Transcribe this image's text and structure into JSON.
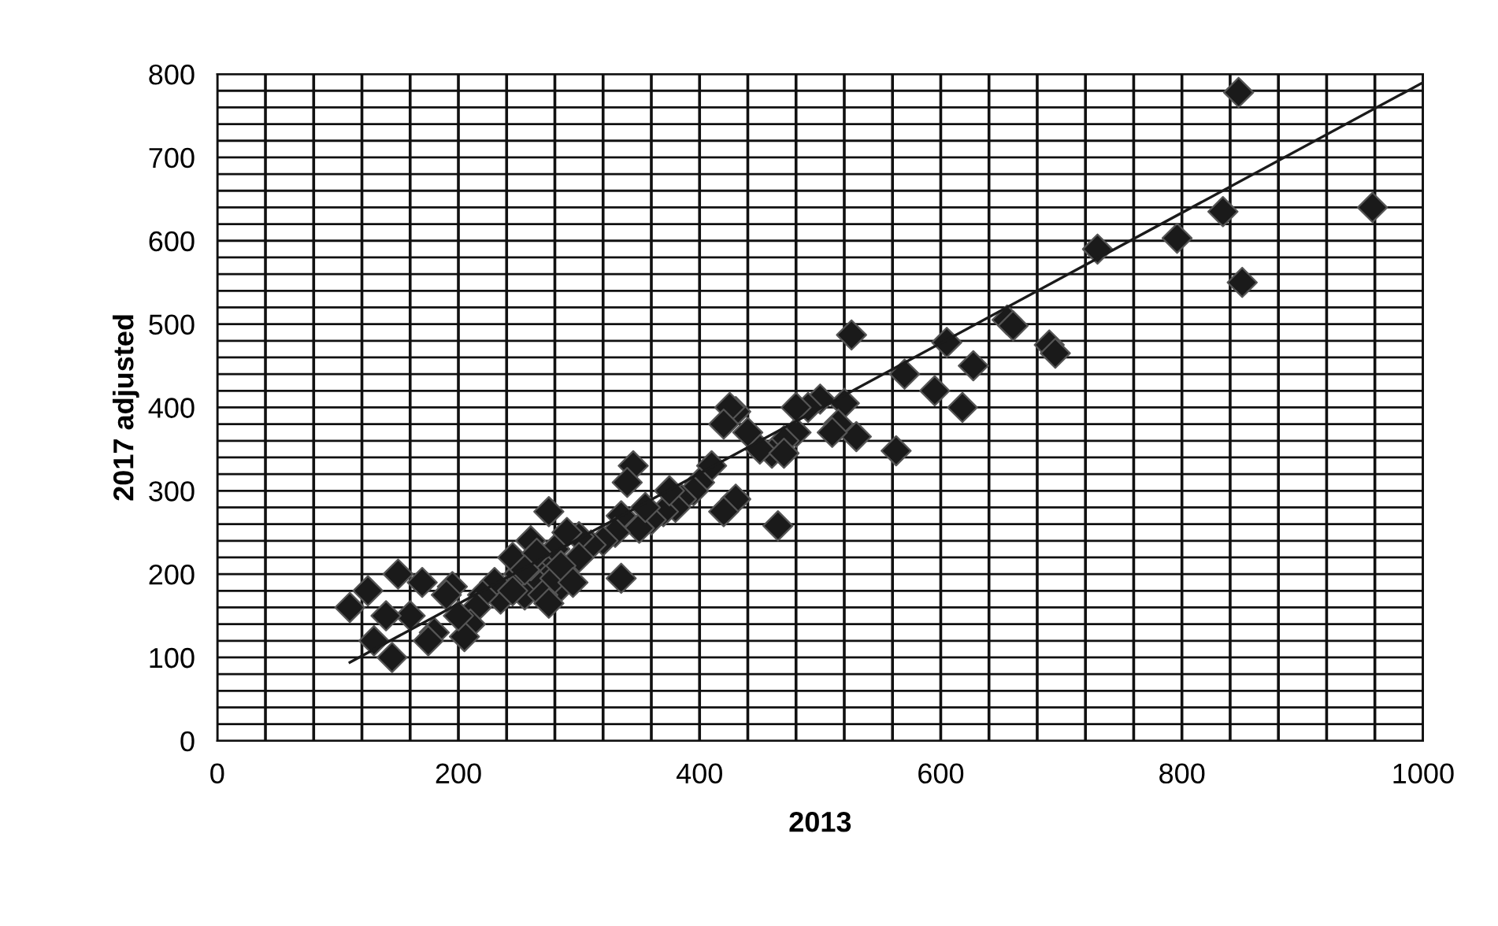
{
  "chart_data": {
    "type": "scatter",
    "xlabel": "2013",
    "ylabel": "2017 adjusted",
    "marker": "diamond",
    "grid": true,
    "xlim": [
      0,
      1000
    ],
    "xticks": [
      0,
      200,
      400,
      600,
      800,
      1000
    ],
    "ylim": [
      0,
      800
    ],
    "yticks": [
      0,
      100,
      200,
      300,
      400,
      500,
      600,
      700,
      800
    ],
    "series": [
      {
        "color": "#1a1a1a",
        "x": [
          847,
          958,
          834,
          796,
          730,
          850,
          690,
          695,
          655,
          660,
          627,
          618,
          605,
          595,
          570,
          563,
          526,
          530,
          520,
          515,
          500,
          490,
          480,
          470,
          465,
          460,
          450,
          440,
          430,
          425,
          420,
          430,
          420,
          410,
          400,
          395,
          385,
          380,
          370,
          360,
          350,
          345,
          340,
          335,
          330,
          335,
          320,
          310,
          300,
          285,
          280,
          275,
          270,
          265,
          260,
          255,
          250,
          245,
          235,
          230,
          220,
          215,
          210,
          205,
          200,
          195,
          190,
          180,
          175,
          170,
          160,
          150,
          145,
          140,
          130,
          125,
          110,
          260,
          270,
          280,
          290,
          300,
          265,
          255,
          245,
          275,
          285,
          295,
          470,
          480,
          510,
          355,
          375
        ],
        "values": [
          778,
          640,
          635,
          603,
          590,
          550,
          475,
          465,
          505,
          498,
          450,
          400,
          478,
          420,
          440,
          348,
          487,
          365,
          405,
          380,
          410,
          400,
          370,
          360,
          258,
          345,
          350,
          370,
          395,
          400,
          380,
          290,
          275,
          330,
          310,
          300,
          290,
          280,
          275,
          265,
          255,
          330,
          310,
          270,
          250,
          195,
          240,
          235,
          245,
          185,
          230,
          275,
          210,
          190,
          240,
          175,
          200,
          220,
          170,
          190,
          175,
          160,
          140,
          125,
          150,
          185,
          175,
          130,
          120,
          190,
          150,
          200,
          100,
          150,
          120,
          180,
          160,
          210,
          175,
          195,
          250,
          220,
          225,
          205,
          180,
          165,
          210,
          190,
          345,
          400,
          370,
          280,
          300
        ]
      },
      {
        "type": "line",
        "color": "#1a1a1a",
        "marker": "none",
        "x": [
          110,
          1000
        ],
        "values": [
          94,
          790
        ]
      }
    ]
  }
}
